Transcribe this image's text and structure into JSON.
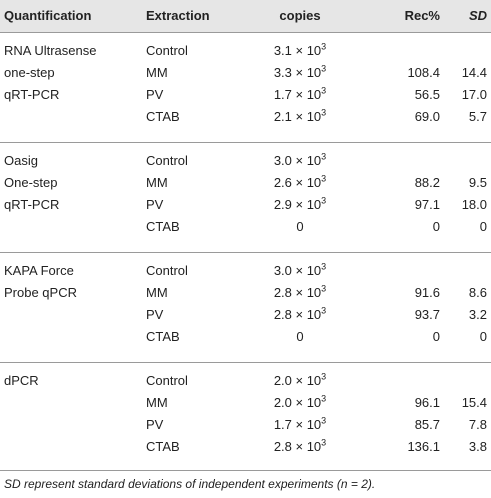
{
  "header": {
    "quantification": "Quantification",
    "extraction": "Extraction",
    "copies": "copies",
    "rec": "Rec%",
    "sd": "SD"
  },
  "groups": [
    {
      "label_lines": [
        "RNA Ultrasense",
        "one-step",
        "qRT-PCR"
      ],
      "rows": [
        {
          "extraction": "Control",
          "copies_mant": "3.1 × 10",
          "copies_exp": "3",
          "rec": "",
          "sd": ""
        },
        {
          "extraction": "MM",
          "copies_mant": "3.3 × 10",
          "copies_exp": "3",
          "rec": "108.4",
          "sd": "14.4"
        },
        {
          "extraction": "PV",
          "copies_mant": "1.7 × 10",
          "copies_exp": "3",
          "rec": "56.5",
          "sd": "17.0"
        },
        {
          "extraction": "CTAB",
          "copies_mant": "2.1 × 10",
          "copies_exp": "3",
          "rec": "69.0",
          "sd": "5.7"
        }
      ]
    },
    {
      "label_lines": [
        "Oasig",
        "One-step",
        "qRT-PCR"
      ],
      "rows": [
        {
          "extraction": "Control",
          "copies_mant": "3.0 × 10",
          "copies_exp": "3",
          "rec": "",
          "sd": ""
        },
        {
          "extraction": "MM",
          "copies_mant": "2.6 × 10",
          "copies_exp": "3",
          "rec": "88.2",
          "sd": "9.5"
        },
        {
          "extraction": "PV",
          "copies_mant": "2.9 × 10",
          "copies_exp": "3",
          "rec": "97.1",
          "sd": "18.0"
        },
        {
          "extraction": "CTAB",
          "copies_mant": "0",
          "copies_exp": "",
          "rec": "0",
          "sd": "0"
        }
      ]
    },
    {
      "label_lines": [
        "KAPA Force",
        "Probe qPCR",
        ""
      ],
      "rows": [
        {
          "extraction": "Control",
          "copies_mant": "3.0 × 10",
          "copies_exp": "3",
          "rec": "",
          "sd": ""
        },
        {
          "extraction": "MM",
          "copies_mant": "2.8 × 10",
          "copies_exp": "3",
          "rec": "91.6",
          "sd": "8.6"
        },
        {
          "extraction": "PV",
          "copies_mant": "2.8 × 10",
          "copies_exp": "3",
          "rec": "93.7",
          "sd": "3.2"
        },
        {
          "extraction": "CTAB",
          "copies_mant": "0",
          "copies_exp": "",
          "rec": "0",
          "sd": "0"
        }
      ]
    },
    {
      "label_lines": [
        "dPCR",
        "",
        ""
      ],
      "rows": [
        {
          "extraction": "Control",
          "copies_mant": "2.0 × 10",
          "copies_exp": "3",
          "rec": "",
          "sd": ""
        },
        {
          "extraction": "MM",
          "copies_mant": "2.0 × 10",
          "copies_exp": "3",
          "rec": "96.1",
          "sd": "15.4"
        },
        {
          "extraction": "PV",
          "copies_mant": "1.7 × 10",
          "copies_exp": "3",
          "rec": "85.7",
          "sd": "7.8"
        },
        {
          "extraction": "CTAB",
          "copies_mant": "2.8 × 10",
          "copies_exp": "3",
          "rec": "136.1",
          "sd": "3.8"
        }
      ]
    }
  ],
  "footnote": "SD represent standard deviations of independent experiments (n = 2).",
  "colors": {
    "header_bg": "#e6e6e6",
    "rule": "#9a9a9a",
    "text": "#222222"
  }
}
